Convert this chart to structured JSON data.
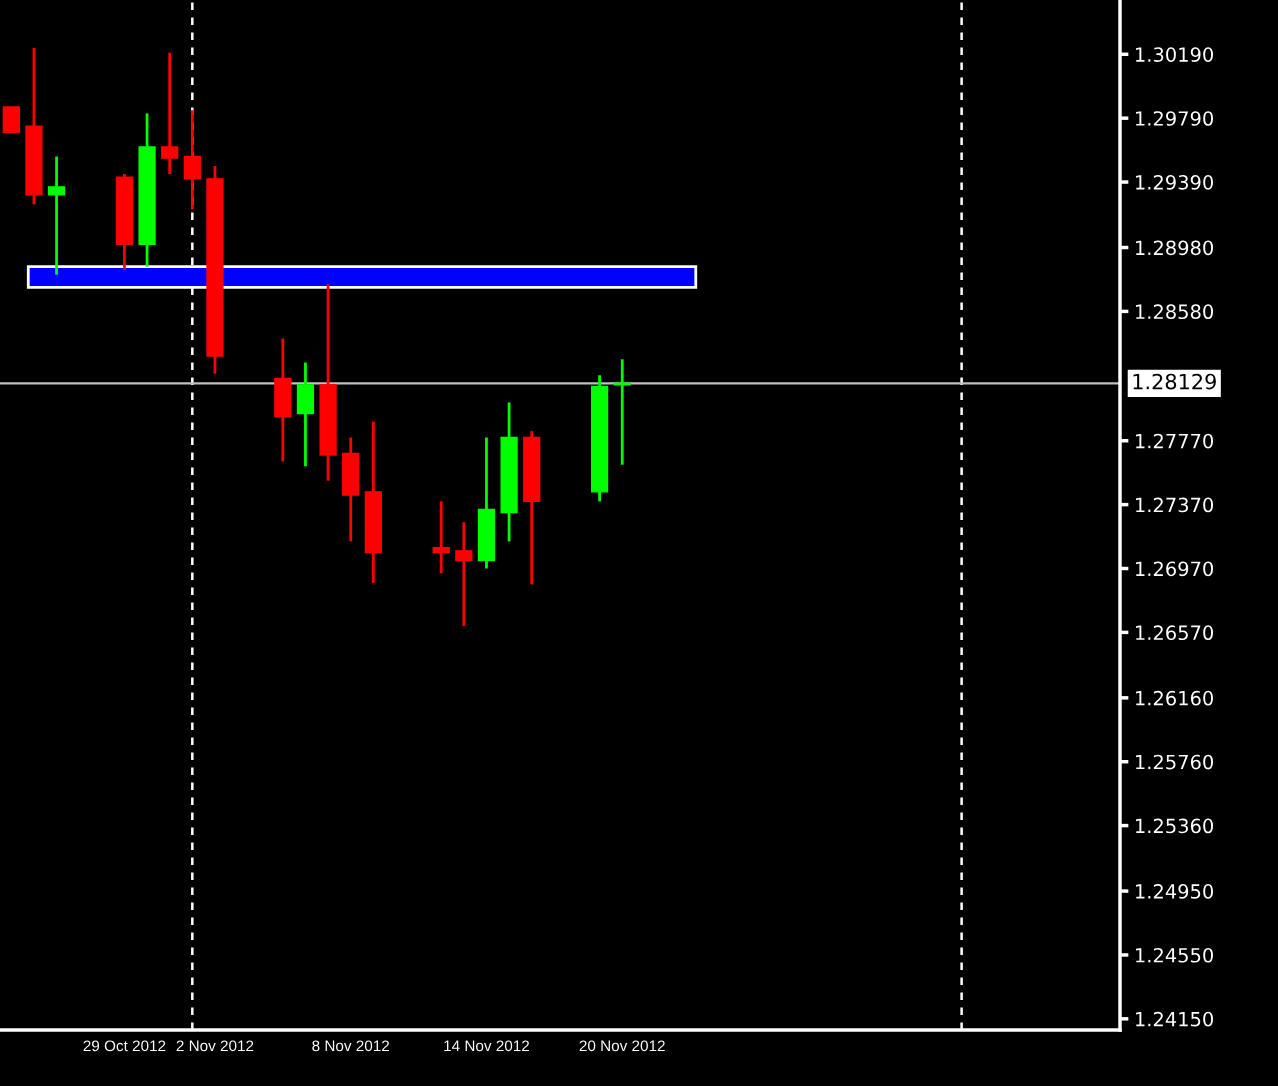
{
  "chart_data": {
    "type": "candlestick",
    "x": [
      "2012-10-24",
      "2012-10-25",
      "2012-10-26",
      "2012-10-29",
      "2012-10-30",
      "2012-10-31",
      "2012-11-01",
      "2012-11-02",
      "2012-11-05",
      "2012-11-06",
      "2012-11-07",
      "2012-11-08",
      "2012-11-09",
      "2012-11-12",
      "2012-11-13",
      "2012-11-14",
      "2012-11-15",
      "2012-11-16",
      "2012-11-19",
      "2012-11-20"
    ],
    "ohlc": [
      [
        1.2986,
        1.2986,
        1.297,
        1.297
      ],
      [
        1.2974,
        1.3023,
        1.2925,
        1.2931
      ],
      [
        1.2931,
        1.2955,
        1.2881,
        1.2936
      ],
      [
        1.2942,
        1.2944,
        1.2884,
        1.29
      ],
      [
        1.29,
        1.2982,
        1.2886,
        1.2961
      ],
      [
        1.2961,
        1.302,
        1.2944,
        1.2954
      ],
      [
        1.2955,
        1.2984,
        1.2922,
        1.2941
      ],
      [
        1.2941,
        1.2949,
        1.2819,
        1.283
      ],
      [
        1.2816,
        1.2841,
        1.2764,
        1.2792
      ],
      [
        1.2794,
        1.2826,
        1.2761,
        1.2812
      ],
      [
        1.2812,
        1.2875,
        1.2752,
        1.2768
      ],
      [
        1.2769,
        1.2779,
        1.2714,
        1.2743
      ],
      [
        1.2745,
        1.2789,
        1.2688,
        1.2707
      ],
      [
        1.271,
        1.2739,
        1.2694,
        1.2707
      ],
      [
        1.2708,
        1.2726,
        1.2661,
        1.2702
      ],
      [
        1.2702,
        1.2779,
        1.2697,
        1.2734
      ],
      [
        1.2732,
        1.2801,
        1.2714,
        1.2779
      ],
      [
        1.2779,
        1.2783,
        1.2687,
        1.2739
      ],
      [
        1.2745,
        1.2818,
        1.2739,
        1.2811
      ],
      [
        1.2812,
        1.2828,
        1.2762,
        1.2813
      ]
    ],
    "colors": [
      "#ff0000",
      "#ff0000",
      "#00ff00",
      "#ff0000",
      "#00ff00",
      "#ff0000",
      "#ff0000",
      "#ff0000",
      "#ff0000",
      "#00ff00",
      "#ff0000",
      "#ff0000",
      "#ff0000",
      "#ff0000",
      "#ff0000",
      "#00ff00",
      "#00ff00",
      "#ff0000",
      "#00ff00",
      "#00ff00"
    ],
    "xlim": [
      "2012-10-23T12:00",
      "2012-12-12"
    ],
    "xticks": [
      {
        "value": "2012-10-29",
        "label": "29 Oct 2012"
      },
      {
        "value": "2012-11-02",
        "label": "2 Nov 2012"
      },
      {
        "value": "2012-11-08",
        "label": "8 Nov 2012"
      },
      {
        "value": "2012-11-14",
        "label": "14 Nov 2012"
      },
      {
        "value": "2012-11-20",
        "label": "20 Nov 2012"
      }
    ],
    "ylim": [
      1.2408,
      1.3053
    ],
    "yticks": [
      {
        "value": 1.3019,
        "label": "1.30190"
      },
      {
        "value": 1.2979,
        "label": "1.29790"
      },
      {
        "value": 1.2939,
        "label": "1.29390"
      },
      {
        "value": 1.2898,
        "label": "1.28980"
      },
      {
        "value": 1.2858,
        "label": "1.28580"
      },
      {
        "value": 1.2777,
        "label": "1.27770"
      },
      {
        "value": 1.2737,
        "label": "1.27370"
      },
      {
        "value": 1.2697,
        "label": "1.26970"
      },
      {
        "value": 1.2657,
        "label": "1.26570"
      },
      {
        "value": 1.2616,
        "label": "1.26160"
      },
      {
        "value": 1.2576,
        "label": "1.25760"
      },
      {
        "value": 1.2536,
        "label": "1.25360"
      },
      {
        "value": 1.2495,
        "label": "1.24950"
      },
      {
        "value": 1.2455,
        "label": "1.24550"
      },
      {
        "value": 1.2415,
        "label": "1.24150"
      }
    ],
    "ref_lines": [
      {
        "axis": "y",
        "value": 1.28129,
        "label": "1.28129",
        "color": "#c0c0c0",
        "line_style": "solid"
      },
      {
        "axis": "x",
        "value": "2012-11-01",
        "color": "#ffffff",
        "line_style": "dashed"
      },
      {
        "axis": "x",
        "value": "2012-12-05",
        "color": "#ffffff",
        "line_style": "dashed"
      }
    ],
    "bands": [
      {
        "axis": "y",
        "from": 1.2873,
        "to": 1.2886,
        "color": "#0000ff"
      }
    ],
    "grid": false,
    "legend": false
  }
}
